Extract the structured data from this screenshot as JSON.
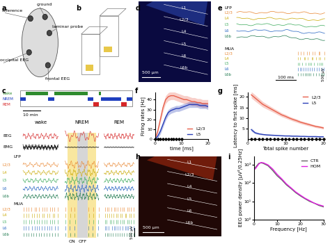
{
  "panel_labels": [
    "a",
    "b",
    "c",
    "d",
    "e",
    "f",
    "g",
    "h",
    "i"
  ],
  "panel_a": {
    "labels": [
      "reference",
      "ground",
      "laminar probe",
      "occipital EEG",
      "frontal EEG"
    ]
  },
  "panel_c": {
    "states": [
      {
        "name": "wake",
        "color": "#2e8b2e"
      },
      {
        "name": "NREM",
        "color": "#1f3fbf"
      },
      {
        "name": "REM",
        "color": "#d62728"
      }
    ],
    "time_bar": "10 min",
    "signals": [
      "EEG",
      "EMG",
      "LFP",
      "MUA"
    ],
    "layers": [
      "L2/3",
      "L4",
      "L5",
      "L6",
      "L6b"
    ],
    "layer_colors": [
      "#e8822a",
      "#c8a800",
      "#3aaa5a",
      "#2060c0",
      "#1f7a4f"
    ],
    "periods": [
      "ON",
      "OFF"
    ],
    "amplitude_bar": "500 µV"
  },
  "panel_d": {
    "layers": [
      "L1",
      "L2/3",
      "L4",
      "L5",
      "L6",
      "L6b"
    ],
    "scale_bar": "500 µm"
  },
  "panel_e": {
    "signals": [
      "LFP",
      "MUA"
    ],
    "time_bar": "100 ms",
    "amplitude_bar": "500 µV"
  },
  "panel_h": {
    "layers": [
      "L1",
      "L2/3",
      "L4",
      "L5",
      "L6",
      "L6b"
    ],
    "scale_bar": "500 µm"
  },
  "chart_data": [
    {
      "type": "line",
      "xlabel": "time [ms]",
      "ylabel": "Firing rates [Hz]",
      "x": [
        0,
        1,
        2,
        3,
        4,
        5,
        6,
        7,
        8,
        9,
        10,
        11,
        12,
        13,
        14,
        15,
        16,
        17,
        18,
        19,
        20
      ],
      "series": [
        {
          "name": "L2/3",
          "color": "#e8604c",
          "values": [
            0,
            8,
            20,
            32,
            40,
            43,
            44,
            44,
            43,
            42,
            41,
            40,
            40,
            39,
            38,
            38,
            37,
            37,
            36,
            36,
            36
          ],
          "errors": [
            1,
            2,
            3,
            4,
            4,
            4,
            4,
            4,
            4,
            4,
            4,
            4,
            4,
            4,
            4,
            4,
            4,
            4,
            4,
            4,
            4
          ]
        },
        {
          "name": "L5",
          "color": "#2a3fb8",
          "values": [
            0,
            3,
            8,
            15,
            22,
            27,
            29,
            30,
            31,
            31,
            32,
            33,
            34,
            35,
            35,
            35,
            35,
            34,
            34,
            34,
            33
          ],
          "errors": [
            1,
            2,
            3,
            3,
            3,
            3,
            3,
            3,
            3,
            3,
            3,
            3,
            3,
            3,
            3,
            3,
            3,
            3,
            3,
            3,
            3
          ]
        }
      ],
      "significant_x": [
        0,
        1,
        2,
        3,
        4,
        5,
        6,
        7,
        8,
        9,
        10
      ],
      "xlim": [
        0,
        20
      ],
      "xticks": [
        0,
        10,
        20
      ],
      "ylim": [
        0,
        47
      ],
      "yticks": [
        0,
        10,
        20,
        30,
        40
      ],
      "legend": "lower right"
    },
    {
      "type": "line",
      "xlabel": "Total spike number",
      "ylabel": "Latency to first spike [ms]",
      "x": [
        1,
        2,
        3,
        4,
        5,
        6,
        7,
        8,
        9,
        10,
        11,
        12,
        13,
        14,
        15,
        16,
        17,
        18,
        19,
        20
      ],
      "series": [
        {
          "name": "L2/3",
          "color": "#e8604c",
          "values": [
            21,
            19.5,
            18,
            16.5,
            15.5,
            14.5,
            13.5,
            12.5,
            11.5,
            10.8,
            10,
            9.3,
            8.7,
            8,
            7.5,
            7,
            6.5,
            6,
            5.7,
            5.3
          ],
          "errors": [
            1.5,
            1.5,
            1.4,
            1.3,
            1.2,
            1.1,
            1,
            1,
            0.9,
            0.9,
            0.8,
            0.8,
            0.8,
            0.7,
            0.7,
            0.7,
            0.6,
            0.6,
            0.6,
            0.6
          ]
        },
        {
          "name": "L5",
          "color": "#2a3fb8",
          "values": [
            4.5,
            3,
            2.5,
            2.2,
            2,
            1.9,
            1.8,
            1.7,
            1.6,
            1.5,
            1.5,
            1.4,
            1.4,
            1.3,
            1.3,
            1.2,
            1.2,
            1.2,
            1.1,
            1.1
          ],
          "errors": [
            0.8,
            0.5,
            0.4,
            0.3,
            0.3,
            0.3,
            0.2,
            0.2,
            0.2,
            0.2,
            0.2,
            0.2,
            0.2,
            0.2,
            0.2,
            0.2,
            0.2,
            0.2,
            0.2,
            0.2
          ]
        }
      ],
      "significant_x": [
        1,
        2,
        3,
        4,
        5,
        6,
        7,
        8,
        9,
        10,
        11,
        12,
        13,
        14,
        15,
        16,
        17,
        18,
        19,
        20
      ],
      "xlim": [
        0,
        20
      ],
      "xticks": [
        0,
        10,
        20
      ],
      "ylim": [
        0,
        22
      ],
      "yticks": [
        5,
        10,
        15,
        20
      ],
      "legend": "upper right"
    },
    {
      "type": "line",
      "xlabel": "Frequency [Hz]",
      "ylabel": "EEG power density [µV²/0.25Hz]",
      "log": "y",
      "x": [
        0.5,
        2,
        3,
        4,
        6,
        8,
        10,
        12,
        14,
        16,
        18,
        20,
        22,
        24,
        26,
        28,
        30
      ],
      "series": [
        {
          "name": "CTR",
          "color": "#666666",
          "values": [
            700,
            1200,
            1300,
            1200,
            900,
            500,
            250,
            150,
            80,
            50,
            30,
            20,
            14,
            10,
            8,
            6,
            5
          ]
        },
        {
          "name": "HOM",
          "color": "#e020e0",
          "values": [
            600,
            1100,
            1350,
            1300,
            1000,
            600,
            300,
            170,
            90,
            55,
            33,
            22,
            15,
            11,
            8,
            6.5,
            5.5
          ]
        }
      ],
      "xlim": [
        0,
        30
      ],
      "xticks": [
        0,
        10,
        20,
        30
      ],
      "ylim": [
        1,
        3000
      ],
      "yticks": [
        {
          "value": 1,
          "label": "10⁰"
        },
        {
          "value": 10,
          "label": "10¹"
        },
        {
          "value": 100,
          "label": "10²"
        },
        {
          "value": 1000,
          "label": "10³"
        }
      ],
      "legend": "upper right"
    }
  ]
}
